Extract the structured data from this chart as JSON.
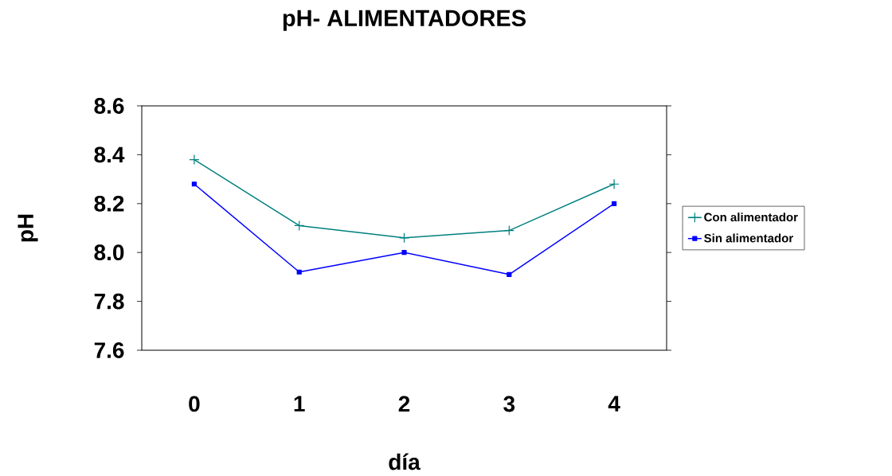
{
  "chart_data": {
    "type": "line",
    "title": "pH- ALIMENTADORES",
    "xlabel": "día",
    "ylabel": "pH",
    "categories": [
      "0",
      "1",
      "2",
      "3",
      "4"
    ],
    "series": [
      {
        "name": "Con alimentador",
        "color": "#008080",
        "marker": "cross",
        "values": [
          8.38,
          8.11,
          8.06,
          8.09,
          8.28
        ]
      },
      {
        "name": "Sin alimentador",
        "color": "#0000ff",
        "marker": "square",
        "values": [
          8.28,
          7.92,
          8.0,
          7.91,
          8.2
        ]
      }
    ],
    "ylim": [
      7.6,
      8.6
    ],
    "yticks": [
      {
        "value": 7.6,
        "label": "7.6"
      },
      {
        "value": 7.8,
        "label": "7.8"
      },
      {
        "value": 8.0,
        "label": "8.0"
      },
      {
        "value": 8.2,
        "label": "8.2"
      },
      {
        "value": 8.4,
        "label": "8.4"
      },
      {
        "value": 8.6,
        "label": "8.6"
      }
    ],
    "grid": false,
    "legend": "right",
    "line_style": "solid"
  }
}
